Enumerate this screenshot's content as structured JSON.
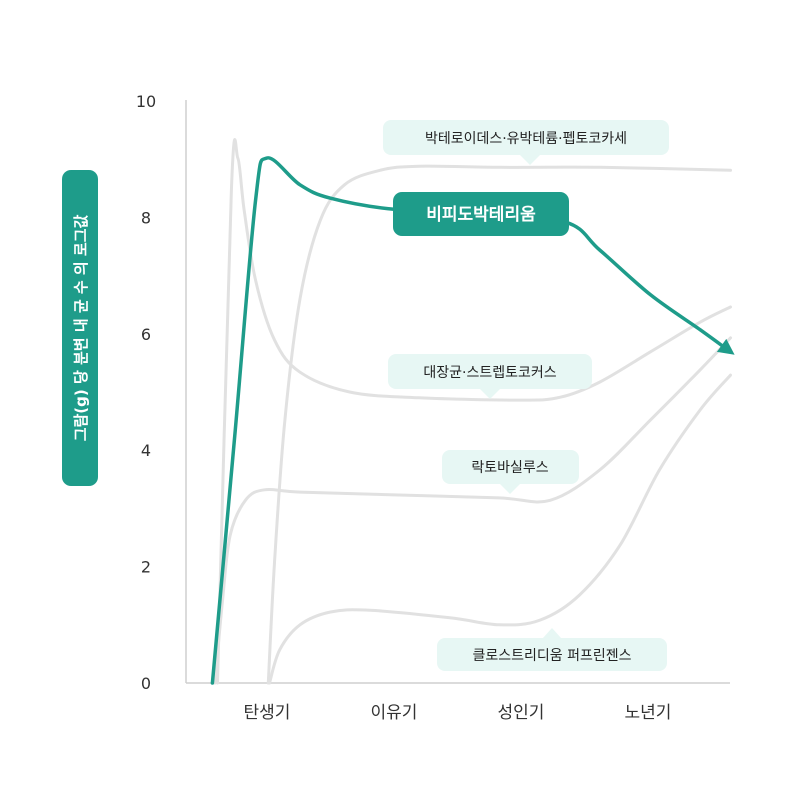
{
  "colors": {
    "accent": "#1e9c8a",
    "series_gray": "#e1e1e1",
    "callout_bg": "#e7f7f4",
    "axis": "#cfcfcf"
  },
  "chart_data": {
    "type": "line",
    "title": "",
    "xlabel": "",
    "ylabel": "그람(g) 당 분변 내 균 수 의 로그값",
    "categories": [
      "탄생기",
      "이유기",
      "성인기",
      "노년기"
    ],
    "ylim": [
      0,
      10
    ],
    "yticks": [
      "0",
      "2",
      "4",
      "6",
      "8",
      "10"
    ],
    "grid": false,
    "series": [
      {
        "name": "박테로이데스·유박테륨·펩토코카세",
        "highlight": false,
        "x": [
          0.01,
          0.06,
          0.14,
          0.26,
          0.42,
          0.61,
          0.89,
          1.2,
          1.83,
          2.62,
          3.65
        ],
        "y": [
          0,
          2.1,
          4.5,
          6.6,
          7.95,
          8.56,
          8.81,
          8.88,
          8.86,
          8.86,
          8.81
        ]
      },
      {
        "name": "비피도박테리움",
        "highlight": true,
        "x": [
          -0.43,
          -0.25,
          -0.09,
          0.0,
          0.26,
          0.5,
          1.0,
          1.68,
          2.35,
          2.62,
          3.02,
          3.41,
          3.65
        ],
        "y": [
          0,
          4.35,
          8.3,
          9.02,
          8.56,
          8.33,
          8.14,
          8.09,
          7.92,
          7.44,
          6.67,
          6.07,
          5.69
        ]
      },
      {
        "name": "대장균·스트렙토코커스",
        "highlight": false,
        "x": [
          -0.39,
          -0.28,
          -0.23,
          -0.18,
          -0.09,
          0.06,
          0.26,
          0.65,
          1.2,
          1.99,
          2.31,
          2.62,
          3.02,
          3.41,
          3.65
        ],
        "y": [
          0,
          8.47,
          9.02,
          8.13,
          6.92,
          5.89,
          5.34,
          5.0,
          4.9,
          4.86,
          4.91,
          5.17,
          5.69,
          6.2,
          6.46
        ]
      },
      {
        "name": "락토바실루스",
        "highlight": false,
        "x": [
          -0.41,
          -0.35,
          -0.29,
          -0.17,
          -0.02,
          0.26,
          1.04,
          1.83,
          2.23,
          2.62,
          3.02,
          3.41,
          3.65
        ],
        "y": [
          0,
          1.43,
          2.54,
          3.14,
          3.32,
          3.28,
          3.23,
          3.18,
          3.14,
          3.66,
          4.52,
          5.38,
          5.93
        ]
      },
      {
        "name": "클로스트리디움 퍼프린젠스",
        "highlight": false,
        "x": [
          0.02,
          0.1,
          0.26,
          0.5,
          0.81,
          1.44,
          1.83,
          2.15,
          2.46,
          2.78,
          3.09,
          3.41,
          3.65
        ],
        "y": [
          0,
          0.57,
          1.0,
          1.22,
          1.25,
          1.12,
          1.0,
          1.08,
          1.51,
          2.37,
          3.66,
          4.69,
          5.29
        ]
      }
    ]
  }
}
